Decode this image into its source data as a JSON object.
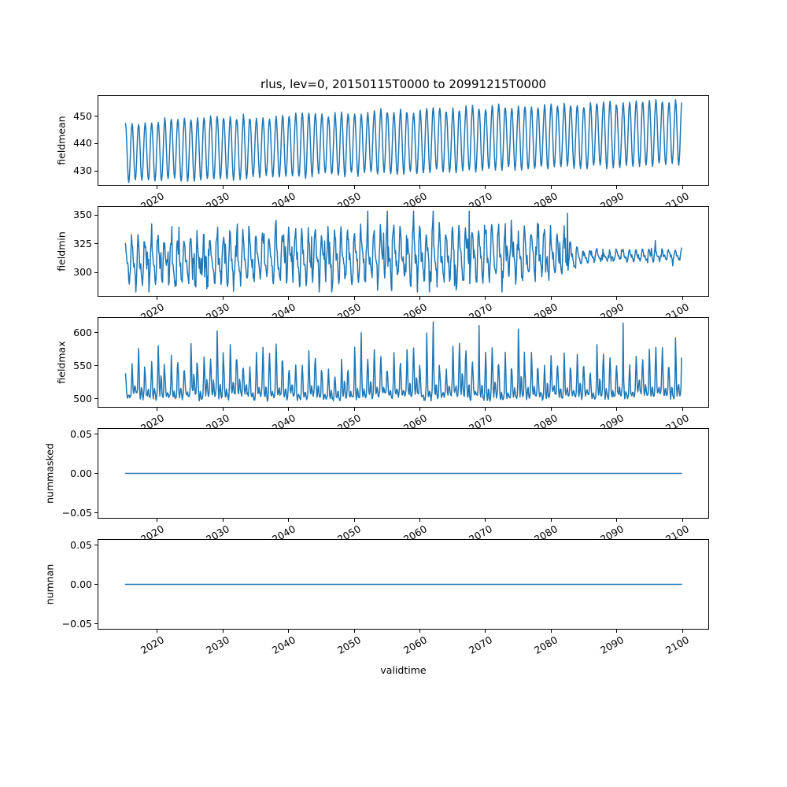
{
  "chart_data": {
    "type": "line",
    "title": "rlus, lev=0, 20150115T0000 to 20991215T0000",
    "xlabel": "validtime",
    "line_color": "#1f77b4",
    "background": "#ffffff",
    "grid": false,
    "legend": null,
    "seed": 1337,
    "x_base": 2015,
    "n_months": 1020,
    "x_start_label": "20150115T0000",
    "x_end_label": "20991215T0000",
    "xlim": [
      2010.9,
      2104.05
    ],
    "x_ticks": [
      2020,
      2030,
      2040,
      2050,
      2060,
      2070,
      2080,
      2090,
      2100
    ],
    "x_tick_labels": [
      "2020",
      "2030",
      "2040",
      "2050",
      "2060",
      "2070",
      "2080",
      "2090",
      "2100"
    ],
    "subplots": [
      {
        "ylabel": "fieldmean",
        "ylim": [
          424.5,
          457.8
        ],
        "yticks": [
          430,
          440,
          450
        ],
        "ytick_labels": [
          "430",
          "440",
          "450"
        ],
        "gen": {
          "kind": "seasonal",
          "peak": [
            [
              2015,
              448.0
            ],
            [
              2099,
              456.2
            ]
          ],
          "trough": [
            [
              2015,
              425.9
            ],
            [
              2099,
              432.4
            ]
          ],
          "peak_jitter": 1.1,
          "trough_jitter": 0.8,
          "noise": 0.35
        }
      },
      {
        "ylabel": "fieldmin",
        "ylim": [
          279.0,
          357.6
        ],
        "yticks": [
          300,
          325,
          350
        ],
        "ytick_labels": [
          "300",
          "325",
          "350"
        ],
        "gen": {
          "kind": "noisy",
          "amp": [
            [
              2015,
              21
            ],
            [
              2040,
              24
            ],
            [
              2065,
              26
            ],
            [
              2079,
              25
            ],
            [
              2082,
              17
            ],
            [
              2085,
              5.5
            ],
            [
              2099,
              5.5
            ]
          ],
          "mean": [
            [
              2015,
              309
            ],
            [
              2040,
              313
            ],
            [
              2070,
              316
            ],
            [
              2083,
              314
            ],
            [
              2099,
              315
            ]
          ],
          "noise_factor": 0.55,
          "spike_down_p": 0.05,
          "spike_up_p": 0.04,
          "clamp": [
            282.5,
            354
          ],
          "spikes": [
            [
              2031,
              283.2
            ],
            [
              2053,
              284.0
            ],
            [
              2067,
              354.0
            ],
            [
              2082,
              352.0
            ]
          ]
        }
      },
      {
        "ylabel": "fieldmax",
        "ylim": [
          486.8,
          623.8
        ],
        "yticks": [
          500,
          550,
          600
        ],
        "ytick_labels": [
          "500",
          "550",
          "600"
        ],
        "gen": {
          "kind": "peaks",
          "base_mean": 502,
          "base_jitter": 9,
          "amp_mean": 58,
          "amp_jitter": 50,
          "big_p": 0.07,
          "big_add": 30,
          "sec_lo": 0.12,
          "sec_hi": 0.45,
          "noise": 7,
          "clamp_min": 492,
          "cap": 606,
          "peak_sigma2": 0.008,
          "sec_phase": 0.45,
          "sec_sigma2": 0.006,
          "spikes": [
            [
              2029,
              604.0
            ],
            [
              2051,
              601.0
            ],
            [
              2062,
              617.5
            ],
            [
              2069,
              612.0
            ],
            [
              2091,
              616.0
            ]
          ]
        }
      },
      {
        "ylabel": "nummasked",
        "ylim": [
          -0.0575,
          0.0575
        ],
        "yticks": [
          -0.05,
          0,
          0.05
        ],
        "ytick_labels": [
          "−0.05",
          "0.00",
          "0.05"
        ],
        "gen": {
          "kind": "constant",
          "value": 0
        }
      },
      {
        "ylabel": "numnan",
        "ylim": [
          -0.0575,
          0.0575
        ],
        "yticks": [
          -0.05,
          0,
          0.05
        ],
        "ytick_labels": [
          "−0.05",
          "0.00",
          "0.05"
        ],
        "gen": {
          "kind": "constant",
          "value": 0
        }
      }
    ]
  }
}
